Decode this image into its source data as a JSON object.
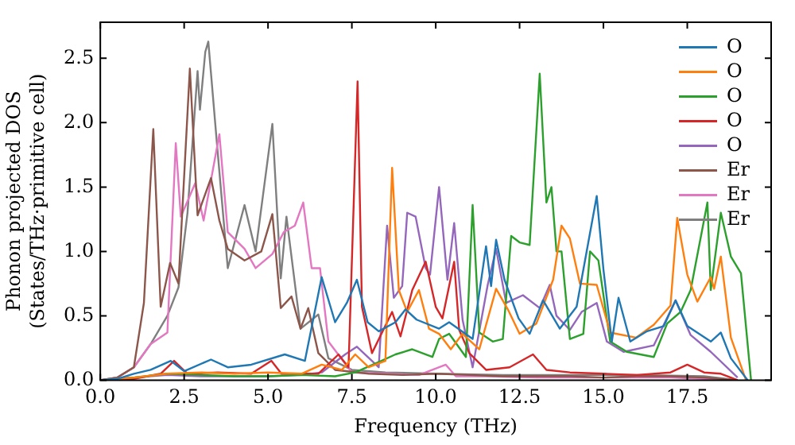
{
  "chart_data": {
    "type": "line",
    "xlabel": "Frequency (THz)",
    "ylabel": "Phonon projected DOS\n(States/THz·primitive cell)",
    "xlim": [
      0,
      20
    ],
    "ylim": [
      0,
      2.78
    ],
    "xticks": [
      {
        "value": 0,
        "label": "0.0"
      },
      {
        "value": 2.5,
        "label": "2.5"
      },
      {
        "value": 5,
        "label": "5.0"
      },
      {
        "value": 7.5,
        "label": "7.5"
      },
      {
        "value": 10,
        "label": "10.0"
      },
      {
        "value": 12.5,
        "label": "12.5"
      },
      {
        "value": 15,
        "label": "15.0"
      },
      {
        "value": 17.5,
        "label": "17.5"
      }
    ],
    "yticks": [
      {
        "value": 0,
        "label": "0.0"
      },
      {
        "value": 0.5,
        "label": "0.5"
      },
      {
        "value": 1,
        "label": "1.0"
      },
      {
        "value": 1.5,
        "label": "1.5"
      },
      {
        "value": 2,
        "label": "2.0"
      },
      {
        "value": 2.5,
        "label": "2.5"
      }
    ],
    "grid": false,
    "legend": "top right",
    "marker": "none",
    "line_style": "solid",
    "series": [
      {
        "name": "O",
        "color": "#1f77b4",
        "x": [
          0,
          0.5,
          1,
          1.5,
          2.1,
          2.5,
          3.3,
          3.8,
          4.5,
          5.5,
          6.1,
          6.6,
          7.0,
          7.35,
          7.65,
          7.97,
          8.3,
          8.8,
          9.1,
          9.43,
          10.1,
          10.4,
          11.1,
          11.5,
          11.65,
          11.8,
          12.05,
          12.47,
          12.8,
          13.2,
          13.7,
          14.2,
          14.8,
          15.0,
          15.25,
          15.45,
          15.8,
          16.3,
          16.8,
          17.15,
          17.5,
          18.2,
          18.5,
          18.8,
          19.3
        ],
        "values": [
          0,
          0.01,
          0.05,
          0.08,
          0.15,
          0.07,
          0.16,
          0.1,
          0.12,
          0.2,
          0.15,
          0.8,
          0.45,
          0.6,
          0.78,
          0.45,
          0.38,
          0.45,
          0.55,
          0.47,
          0.4,
          0.45,
          0.32,
          1.04,
          0.73,
          1.09,
          0.78,
          0.48,
          0.36,
          0.62,
          0.4,
          0.57,
          1.43,
          0.86,
          0.3,
          0.64,
          0.3,
          0.38,
          0.42,
          0.62,
          0.42,
          0.3,
          0.37,
          0.17,
          0
        ]
      },
      {
        "name": "O",
        "color": "#ff7f0e",
        "x": [
          0,
          1,
          2,
          3,
          4,
          5,
          6,
          6.6,
          7.2,
          7.6,
          8.0,
          8.5,
          8.7,
          8.9,
          9.15,
          9.5,
          9.8,
          10.1,
          10.45,
          10.8,
          11.3,
          11.8,
          12.15,
          12.5,
          13.0,
          13.5,
          13.75,
          14.0,
          14.3,
          14.8,
          15.2,
          15.97,
          16.5,
          17.0,
          17.2,
          17.5,
          17.8,
          18.2,
          18.3,
          18.5,
          18.8,
          19.25
        ],
        "values": [
          0,
          0.02,
          0.05,
          0.06,
          0.05,
          0.06,
          0.05,
          0.12,
          0.08,
          0.2,
          0.1,
          0.15,
          1.65,
          0.7,
          0.53,
          0.7,
          0.4,
          0.36,
          0.24,
          0.36,
          0.24,
          0.71,
          0.55,
          0.36,
          0.44,
          0.78,
          1.2,
          1.1,
          0.75,
          0.74,
          0.37,
          0.33,
          0.43,
          0.58,
          1.26,
          0.82,
          0.61,
          0.8,
          0.71,
          0.96,
          0.33,
          0
        ]
      },
      {
        "name": "O",
        "color": "#2ca02c",
        "x": [
          0,
          1,
          2,
          3,
          4,
          5,
          6,
          7,
          7.6,
          8.3,
          8.8,
          9.3,
          9.9,
          10.1,
          10.4,
          10.9,
          11.1,
          11.3,
          11.7,
          12.0,
          12.25,
          12.5,
          12.8,
          13.1,
          13.3,
          13.45,
          13.6,
          13.75,
          14.0,
          14.4,
          14.6,
          14.85,
          15.2,
          15.7,
          16.5,
          16.9,
          17.3,
          17.6,
          18.1,
          18.2,
          18.5,
          18.8,
          19.1,
          19.4
        ],
        "values": [
          0,
          0.02,
          0.05,
          0.04,
          0.03,
          0.03,
          0.04,
          0.03,
          0.06,
          0.14,
          0.2,
          0.24,
          0.18,
          0.32,
          0.36,
          0.18,
          1.36,
          0.37,
          0.3,
          0.32,
          1.12,
          1.07,
          1.05,
          2.38,
          1.38,
          1.5,
          1.0,
          1.0,
          0.32,
          0.36,
          1.0,
          0.93,
          0.3,
          0.22,
          0.18,
          0.44,
          0.53,
          0.7,
          1.38,
          0.7,
          1.3,
          0.96,
          0.83,
          0
        ]
      },
      {
        "name": "O",
        "color": "#d62728",
        "x": [
          0,
          1,
          1.8,
          2.2,
          2.6,
          3.5,
          4.5,
          5.1,
          5.4,
          6.5,
          7.1,
          7.4,
          7.67,
          7.8,
          8.1,
          8.7,
          8.95,
          9.3,
          9.7,
          10.0,
          10.2,
          10.55,
          10.7,
          11.0,
          11.5,
          12.2,
          12.9,
          13.3,
          14,
          15,
          16,
          17,
          17.5,
          18,
          18.5,
          19
        ],
        "values": [
          0,
          0.01,
          0.05,
          0.15,
          0.05,
          0.06,
          0.05,
          0.15,
          0.05,
          0.05,
          0.2,
          0.1,
          2.32,
          0.57,
          0.21,
          0.53,
          0.34,
          0.7,
          0.92,
          0.57,
          0.48,
          0.92,
          0.39,
          0.21,
          0.08,
          0.1,
          0.2,
          0.08,
          0.06,
          0.05,
          0.04,
          0.06,
          0.12,
          0.06,
          0.05,
          0
        ]
      },
      {
        "name": "O",
        "color": "#9467bd",
        "x": [
          0,
          1,
          2,
          3,
          4,
          5,
          6,
          6.6,
          7.3,
          7.65,
          8.3,
          8.55,
          8.75,
          9.0,
          9.15,
          9.4,
          9.7,
          9.83,
          10.1,
          10.35,
          10.55,
          10.8,
          11.1,
          11.55,
          11.8,
          12.1,
          12.6,
          13.1,
          13.4,
          13.6,
          14.0,
          14.35,
          14.8,
          15.1,
          15.6,
          16.5,
          17.15,
          17.6,
          18.2,
          19.0
        ],
        "values": [
          0,
          0.02,
          0.04,
          0.03,
          0.03,
          0.03,
          0.04,
          0.06,
          0.2,
          0.26,
          0.1,
          1.2,
          0.64,
          0.73,
          1.3,
          1.27,
          0.87,
          0.82,
          1.5,
          0.78,
          1.22,
          0.47,
          0.1,
          0.74,
          1.02,
          0.6,
          0.66,
          0.56,
          0.74,
          0.5,
          0.39,
          0.53,
          0.6,
          0.3,
          0.22,
          0.27,
          0.62,
          0.35,
          0.22,
          0.02
        ]
      },
      {
        "name": "Er",
        "color": "#8c564b",
        "x": [
          0,
          0.5,
          1.0,
          1.3,
          1.58,
          1.8,
          2.08,
          2.33,
          2.67,
          2.9,
          3.3,
          3.55,
          3.8,
          4.3,
          4.8,
          5.13,
          5.38,
          5.7,
          5.97,
          6.2,
          6.5,
          7,
          8,
          9,
          10,
          11,
          12,
          13,
          14,
          15,
          16,
          17,
          18,
          19
        ],
        "values": [
          0,
          0.02,
          0.1,
          0.6,
          1.95,
          0.57,
          0.91,
          0.75,
          2.42,
          1.28,
          1.57,
          1.24,
          1.02,
          0.93,
          1.0,
          1.29,
          0.56,
          0.65,
          0.4,
          0.56,
          0.21,
          0.08,
          0.05,
          0.04,
          0.05,
          0.04,
          0.03,
          0.03,
          0.03,
          0.02,
          0.03,
          0.03,
          0.02,
          0
        ]
      },
      {
        "name": "Er",
        "color": "#e377c2",
        "x": [
          0,
          0.5,
          1.0,
          1.5,
          2.0,
          2.25,
          2.4,
          2.6,
          2.83,
          3.08,
          3.55,
          3.8,
          4.3,
          4.63,
          5.13,
          5.47,
          5.8,
          6.05,
          6.3,
          6.55,
          6.8,
          7.5,
          8.5,
          9.5,
          10.3,
          10.6,
          11.5,
          13,
          15,
          17,
          19
        ],
        "values": [
          0,
          0.02,
          0.1,
          0.28,
          0.37,
          1.84,
          1.27,
          1.39,
          1.53,
          1.24,
          1.91,
          1.15,
          1.02,
          0.87,
          0.98,
          1.15,
          1.2,
          1.38,
          0.87,
          0.87,
          0.3,
          0.06,
          0.05,
          0.04,
          0.12,
          0.03,
          0.03,
          0.02,
          0.02,
          0.02,
          0
        ]
      },
      {
        "name": "Er",
        "color": "#7f7f7f",
        "x": [
          0,
          0.5,
          1.0,
          1.5,
          2.0,
          2.33,
          2.6,
          2.9,
          2.97,
          3.13,
          3.22,
          3.47,
          3.8,
          4.3,
          4.63,
          5.13,
          5.38,
          5.55,
          5.97,
          6.5,
          6.8,
          7.5,
          8.5,
          10,
          12,
          14,
          16,
          18,
          19
        ],
        "values": [
          0,
          0.02,
          0.1,
          0.28,
          0.5,
          0.72,
          1.3,
          2.4,
          2.1,
          2.55,
          2.63,
          1.86,
          0.87,
          1.36,
          1.0,
          1.99,
          0.79,
          1.27,
          0.4,
          0.51,
          0.17,
          0.08,
          0.06,
          0.05,
          0.04,
          0.04,
          0.04,
          0.03,
          0
        ]
      }
    ]
  }
}
